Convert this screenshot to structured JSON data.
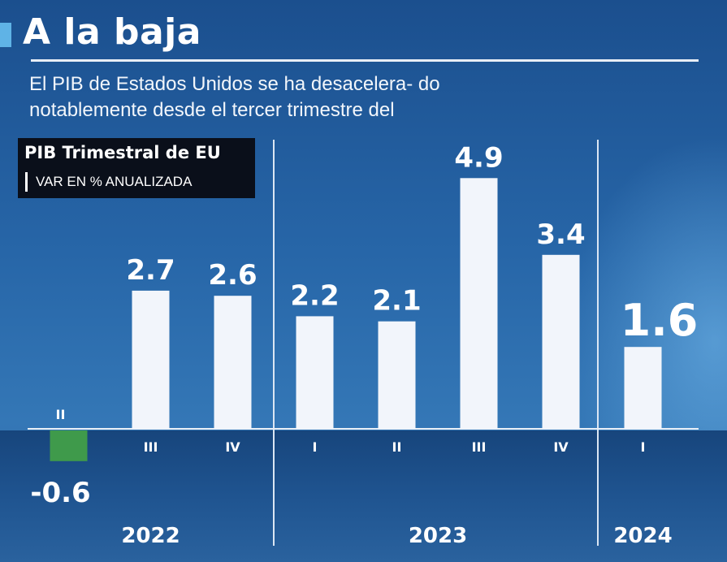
{
  "header": {
    "title": "A la baja",
    "subtitle": "El PIB de Estados Unidos se ha desacelera- do notablemente desde el tercer trimestre del"
  },
  "chart_label": {
    "title": "PIB Trimestral de EU",
    "subtitle": "VAR EN % ANUALIZADA"
  },
  "colors": {
    "positive_bar": "#f2f5fb",
    "negative_bar": "#3f9a4b",
    "background": "#2766a8"
  },
  "chart_data": {
    "type": "bar",
    "title": "PIB Trimestral de EU",
    "ylabel": "VAR EN % ANUALIZADA",
    "categories": [
      "II",
      "III",
      "IV",
      "I",
      "II",
      "III",
      "IV",
      "I"
    ],
    "years": [
      "2022",
      "2022",
      "2022",
      "2023",
      "2023",
      "2023",
      "2023",
      "2024"
    ],
    "values": [
      -0.6,
      2.7,
      2.6,
      2.2,
      2.1,
      4.9,
      3.4,
      1.6
    ],
    "value_labels": [
      "-0.6",
      "2.7",
      "2.6",
      "2.2",
      "2.1",
      "4.9",
      "3.4",
      "1.6"
    ],
    "year_labels": [
      "2022",
      "2023",
      "2024"
    ],
    "highlight_last": true,
    "grid": false
  }
}
